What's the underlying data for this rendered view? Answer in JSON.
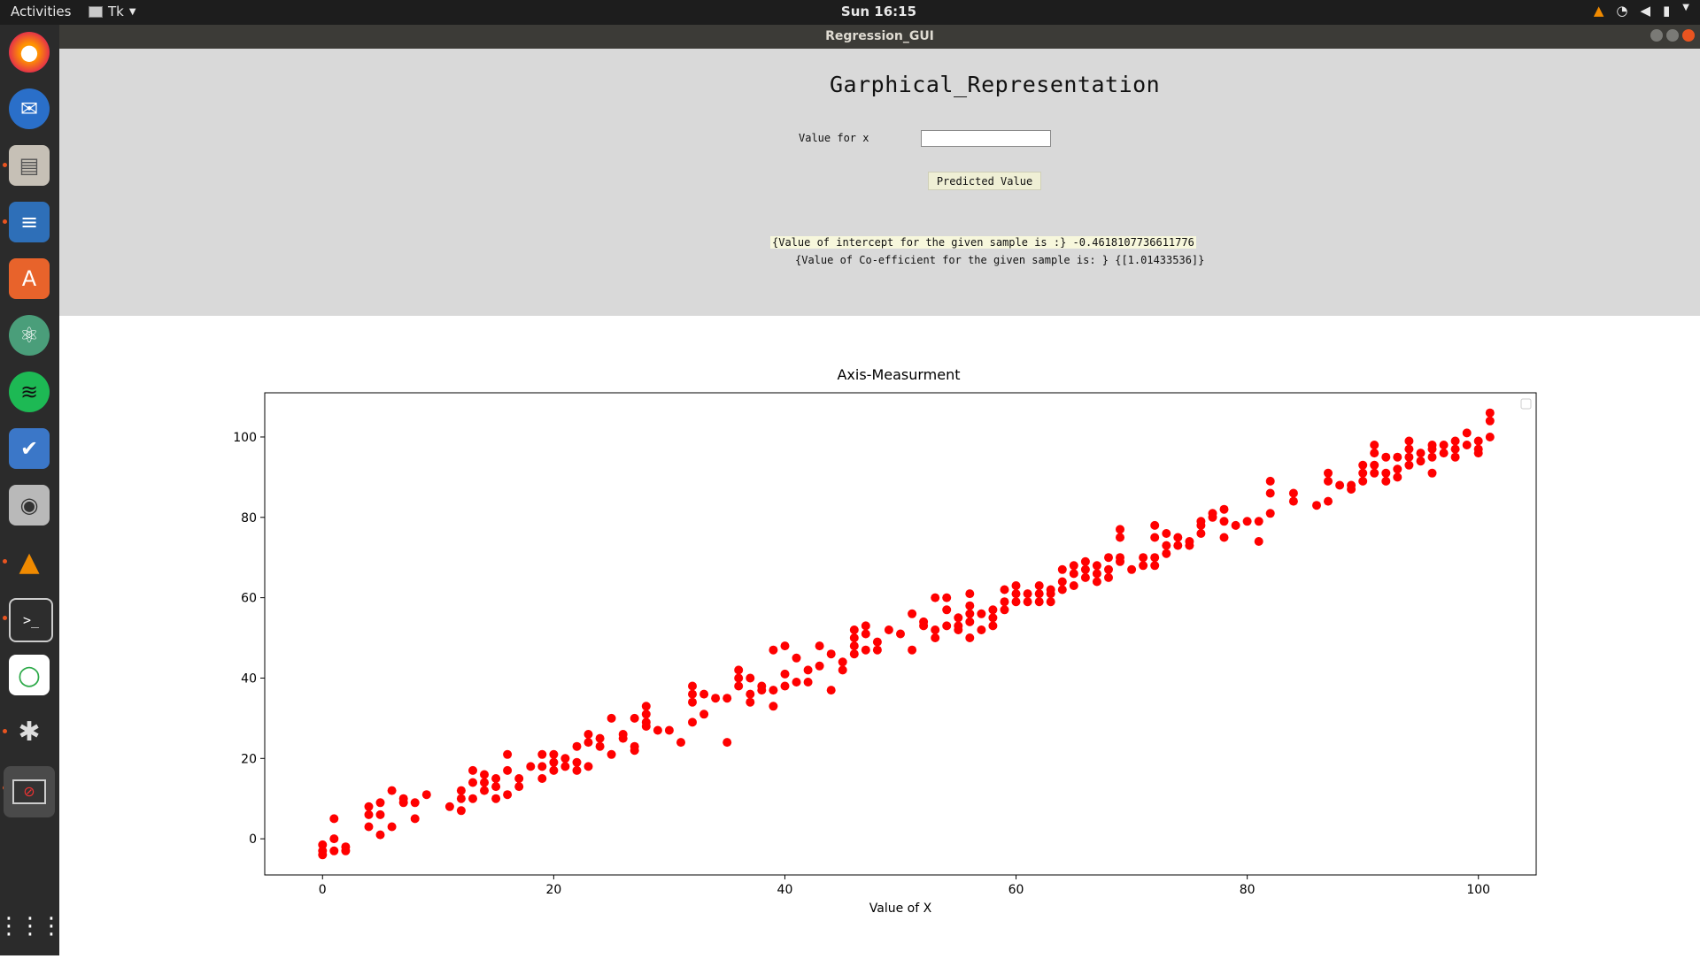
{
  "topbar": {
    "activities": "Activities",
    "app_name": "Tk",
    "clock": "Sun 16:15"
  },
  "window": {
    "title": "Regression_GUI"
  },
  "form": {
    "heading": "Garphical_Representation",
    "x_label": "Value for x",
    "x_value": "",
    "predict_button": "Predicted Value",
    "intercept_text": "{Value of intercept for the given sample is :} -0.4618107736611776",
    "coef_text": "{Value of Co-efficient for the given sample is: } {[1.01433536]}"
  },
  "colors": {
    "points": "#ff0000",
    "accent": "#e95420"
  },
  "dock": {
    "icons": [
      "firefox-icon",
      "thunderbird-icon",
      "files-icon",
      "writer-icon",
      "software-icon",
      "atom-icon",
      "spotify-icon",
      "tasks-icon",
      "camera-icon",
      "vlc-icon",
      "terminal-icon",
      "sync-icon",
      "web-icon",
      "tk-app-icon",
      "show-apps-icon"
    ]
  },
  "chart_data": {
    "type": "scatter",
    "title": "Axis-Measurment",
    "xlabel": "Value of X",
    "ylabel": "",
    "xlim": [
      -5,
      105
    ],
    "ylim": [
      -9,
      111
    ],
    "xticks": [
      0,
      20,
      40,
      60,
      80,
      100
    ],
    "yticks": [
      0,
      20,
      40,
      60,
      80,
      100
    ],
    "grid": false,
    "legend": "top-right (empty)",
    "points": [
      [
        0,
        -1.5
      ],
      [
        0,
        -3
      ],
      [
        0,
        -4
      ],
      [
        1,
        5
      ],
      [
        1,
        0
      ],
      [
        1,
        -3
      ],
      [
        2,
        -2
      ],
      [
        2,
        -3
      ],
      [
        4,
        8
      ],
      [
        4,
        6
      ],
      [
        4,
        3
      ],
      [
        5,
        9
      ],
      [
        5,
        6
      ],
      [
        5,
        1
      ],
      [
        6,
        12
      ],
      [
        6,
        3
      ],
      [
        7,
        10
      ],
      [
        7,
        9
      ],
      [
        8,
        9
      ],
      [
        8,
        5
      ],
      [
        9,
        11
      ],
      [
        11,
        8
      ],
      [
        12,
        12
      ],
      [
        12,
        10
      ],
      [
        12,
        7
      ],
      [
        13,
        17
      ],
      [
        13,
        14
      ],
      [
        13,
        10
      ],
      [
        14,
        16
      ],
      [
        14,
        14
      ],
      [
        14,
        12
      ],
      [
        15,
        15
      ],
      [
        15,
        13
      ],
      [
        15,
        10
      ],
      [
        16,
        21
      ],
      [
        16,
        17
      ],
      [
        16,
        11
      ],
      [
        17,
        15
      ],
      [
        17,
        13
      ],
      [
        18,
        18
      ],
      [
        19,
        21
      ],
      [
        19,
        18
      ],
      [
        19,
        15
      ],
      [
        20,
        21
      ],
      [
        20,
        19
      ],
      [
        20,
        17
      ],
      [
        21,
        20
      ],
      [
        21,
        18
      ],
      [
        22,
        23
      ],
      [
        22,
        19
      ],
      [
        22,
        17
      ],
      [
        23,
        26
      ],
      [
        23,
        24
      ],
      [
        23,
        18
      ],
      [
        24,
        25
      ],
      [
        24,
        23
      ],
      [
        25,
        30
      ],
      [
        25,
        21
      ],
      [
        26,
        26
      ],
      [
        26,
        25
      ],
      [
        27,
        30
      ],
      [
        27,
        23
      ],
      [
        27,
        22
      ],
      [
        28,
        33
      ],
      [
        28,
        31
      ],
      [
        28,
        29
      ],
      [
        28,
        28
      ],
      [
        29,
        27
      ],
      [
        30,
        27
      ],
      [
        31,
        24
      ],
      [
        32,
        38
      ],
      [
        32,
        36
      ],
      [
        32,
        34
      ],
      [
        32,
        29
      ],
      [
        33,
        36
      ],
      [
        33,
        31
      ],
      [
        34,
        35
      ],
      [
        35,
        24
      ],
      [
        35,
        35
      ],
      [
        36,
        42
      ],
      [
        36,
        40
      ],
      [
        36,
        38
      ],
      [
        37,
        36
      ],
      [
        37,
        34
      ],
      [
        37,
        40
      ],
      [
        38,
        38
      ],
      [
        38,
        37
      ],
      [
        39,
        37
      ],
      [
        39,
        33
      ],
      [
        39,
        47
      ],
      [
        40,
        48
      ],
      [
        40,
        41
      ],
      [
        40,
        38
      ],
      [
        41,
        45
      ],
      [
        41,
        39
      ],
      [
        42,
        39
      ],
      [
        42,
        42
      ],
      [
        43,
        48
      ],
      [
        43,
        43
      ],
      [
        44,
        46
      ],
      [
        44,
        37
      ],
      [
        45,
        44
      ],
      [
        45,
        42
      ],
      [
        46,
        52
      ],
      [
        46,
        50
      ],
      [
        46,
        48
      ],
      [
        46,
        46
      ],
      [
        47,
        53
      ],
      [
        47,
        51
      ],
      [
        47,
        47
      ],
      [
        48,
        49
      ],
      [
        48,
        47
      ],
      [
        49,
        52
      ],
      [
        50,
        51
      ],
      [
        51,
        56
      ],
      [
        51,
        47
      ],
      [
        52,
        54
      ],
      [
        52,
        53
      ],
      [
        53,
        60
      ],
      [
        53,
        52
      ],
      [
        53,
        50
      ],
      [
        54,
        60
      ],
      [
        54,
        57
      ],
      [
        54,
        53
      ],
      [
        55,
        53
      ],
      [
        55,
        55
      ],
      [
        55,
        52
      ],
      [
        56,
        61
      ],
      [
        56,
        58
      ],
      [
        56,
        56
      ],
      [
        56,
        54
      ],
      [
        56,
        50
      ],
      [
        57,
        56
      ],
      [
        57,
        52
      ],
      [
        58,
        57
      ],
      [
        58,
        55
      ],
      [
        58,
        53
      ],
      [
        59,
        62
      ],
      [
        59,
        59
      ],
      [
        59,
        57
      ],
      [
        60,
        63
      ],
      [
        60,
        61
      ],
      [
        60,
        59
      ],
      [
        61,
        61
      ],
      [
        61,
        59
      ],
      [
        62,
        63
      ],
      [
        62,
        61
      ],
      [
        62,
        59
      ],
      [
        63,
        62
      ],
      [
        63,
        61
      ],
      [
        63,
        59
      ],
      [
        64,
        67
      ],
      [
        64,
        64
      ],
      [
        64,
        62
      ],
      [
        65,
        68
      ],
      [
        65,
        66
      ],
      [
        65,
        63
      ],
      [
        66,
        69
      ],
      [
        66,
        67
      ],
      [
        66,
        65
      ],
      [
        67,
        68
      ],
      [
        67,
        66
      ],
      [
        67,
        64
      ],
      [
        68,
        70
      ],
      [
        68,
        67
      ],
      [
        68,
        65
      ],
      [
        69,
        77
      ],
      [
        69,
        75
      ],
      [
        69,
        70
      ],
      [
        69,
        69
      ],
      [
        70,
        67
      ],
      [
        71,
        70
      ],
      [
        71,
        68
      ],
      [
        72,
        78
      ],
      [
        72,
        75
      ],
      [
        72,
        70
      ],
      [
        72,
        68
      ],
      [
        73,
        76
      ],
      [
        73,
        73
      ],
      [
        73,
        71
      ],
      [
        74,
        75
      ],
      [
        74,
        73
      ],
      [
        75,
        74
      ],
      [
        75,
        73
      ],
      [
        76,
        79
      ],
      [
        76,
        78
      ],
      [
        76,
        76
      ],
      [
        77,
        81
      ],
      [
        77,
        80
      ],
      [
        78,
        82
      ],
      [
        78,
        79
      ],
      [
        78,
        75
      ],
      [
        79,
        78
      ],
      [
        80,
        79
      ],
      [
        81,
        79
      ],
      [
        81,
        74
      ],
      [
        82,
        89
      ],
      [
        82,
        86
      ],
      [
        82,
        81
      ],
      [
        84,
        86
      ],
      [
        84,
        84
      ],
      [
        86,
        83
      ],
      [
        87,
        91
      ],
      [
        87,
        89
      ],
      [
        87,
        84
      ],
      [
        88,
        88
      ],
      [
        89,
        88
      ],
      [
        89,
        87
      ],
      [
        90,
        93
      ],
      [
        90,
        91
      ],
      [
        90,
        89
      ],
      [
        91,
        98
      ],
      [
        91,
        96
      ],
      [
        91,
        93
      ],
      [
        91,
        91
      ],
      [
        92,
        95
      ],
      [
        92,
        91
      ],
      [
        92,
        89
      ],
      [
        93,
        95
      ],
      [
        93,
        92
      ],
      [
        93,
        90
      ],
      [
        94,
        99
      ],
      [
        94,
        97
      ],
      [
        94,
        95
      ],
      [
        94,
        93
      ],
      [
        95,
        96
      ],
      [
        95,
        94
      ],
      [
        96,
        98
      ],
      [
        96,
        97
      ],
      [
        96,
        95
      ],
      [
        96,
        91
      ],
      [
        97,
        98
      ],
      [
        97,
        96
      ],
      [
        98,
        99
      ],
      [
        98,
        97
      ],
      [
        98,
        95
      ],
      [
        99,
        101
      ],
      [
        99,
        98
      ],
      [
        100,
        96
      ],
      [
        100,
        99
      ],
      [
        100,
        97
      ],
      [
        101,
        106
      ],
      [
        101,
        104
      ],
      [
        101,
        100
      ]
    ]
  }
}
